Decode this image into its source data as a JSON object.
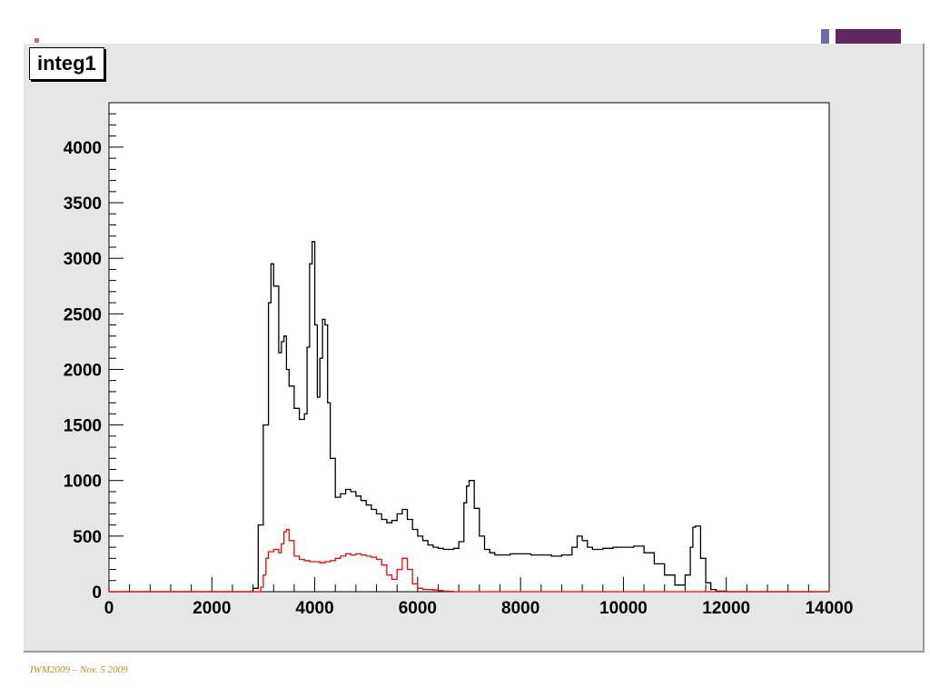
{
  "slide": {
    "footer": "IWM2009 – Nov. 5 2009",
    "decor_colors": {
      "marker": "#b070b0",
      "small_block": "#6a6fa8",
      "large_block": "#5e2a5e"
    },
    "canvas_background": "#e6e6e6"
  },
  "chart_data": {
    "type": "line",
    "title": "integ1",
    "xlabel": "",
    "ylabel": "",
    "xlim": [
      0,
      14000
    ],
    "ylim": [
      0,
      4400
    ],
    "grid": false,
    "x_ticks": [
      0,
      2000,
      4000,
      6000,
      8000,
      10000,
      12000,
      14000
    ],
    "y_ticks": [
      0,
      500,
      1000,
      1500,
      2000,
      2500,
      3000,
      3500,
      4000
    ],
    "series": [
      {
        "color": "#000000",
        "x": [
          0,
          2400,
          2800,
          2900,
          3000,
          3100,
          3150,
          3200,
          3300,
          3350,
          3400,
          3450,
          3500,
          3600,
          3700,
          3800,
          3850,
          3900,
          3950,
          4000,
          4050,
          4100,
          4150,
          4200,
          4250,
          4300,
          4400,
          4500,
          4600,
          4700,
          4800,
          4900,
          5000,
          5100,
          5200,
          5300,
          5400,
          5500,
          5600,
          5700,
          5800,
          5900,
          6000,
          6100,
          6200,
          6300,
          6400,
          6500,
          6600,
          6700,
          6800,
          6900,
          6950,
          7000,
          7100,
          7200,
          7300,
          7400,
          7500,
          7600,
          7800,
          8000,
          8200,
          8400,
          8600,
          8800,
          9000,
          9100,
          9200,
          9300,
          9400,
          9500,
          9600,
          9800,
          10000,
          10200,
          10400,
          10600,
          10800,
          11000,
          11100,
          11200,
          11300,
          11350,
          11400,
          11500,
          11600,
          11700,
          11800,
          12000,
          14000
        ],
        "y": [
          0,
          0,
          30,
          600,
          1500,
          2600,
          2950,
          2750,
          2150,
          2250,
          2300,
          2000,
          1850,
          1650,
          1550,
          1600,
          2200,
          2950,
          3150,
          2400,
          1750,
          2100,
          2450,
          2400,
          1700,
          1200,
          850,
          880,
          920,
          900,
          860,
          820,
          780,
          740,
          700,
          650,
          620,
          640,
          700,
          740,
          650,
          560,
          500,
          460,
          420,
          400,
          390,
          380,
          380,
          390,
          450,
          800,
          950,
          1000,
          750,
          500,
          380,
          350,
          330,
          330,
          340,
          340,
          330,
          330,
          320,
          330,
          400,
          500,
          460,
          400,
          380,
          380,
          390,
          400,
          400,
          410,
          350,
          250,
          150,
          60,
          60,
          150,
          400,
          580,
          590,
          300,
          80,
          20,
          5,
          0,
          0
        ]
      },
      {
        "color": "#ff0000",
        "x": [
          0,
          2800,
          2950,
          3000,
          3050,
          3100,
          3200,
          3300,
          3350,
          3400,
          3450,
          3500,
          3600,
          3700,
          3800,
          3900,
          4000,
          4100,
          4200,
          4300,
          4400,
          4500,
          4600,
          4700,
          4800,
          4900,
          5000,
          5100,
          5200,
          5300,
          5400,
          5500,
          5600,
          5700,
          5800,
          5900,
          6000,
          6100,
          6200,
          6300,
          6400,
          6500,
          6600,
          6700,
          14000
        ],
        "y": [
          0,
          0,
          40,
          150,
          300,
          360,
          380,
          350,
          430,
          540,
          560,
          460,
          320,
          290,
          280,
          270,
          270,
          260,
          270,
          280,
          300,
          320,
          340,
          330,
          340,
          330,
          320,
          310,
          290,
          240,
          150,
          110,
          200,
          300,
          200,
          70,
          30,
          20,
          20,
          15,
          10,
          5,
          3,
          0,
          0
        ]
      }
    ]
  }
}
